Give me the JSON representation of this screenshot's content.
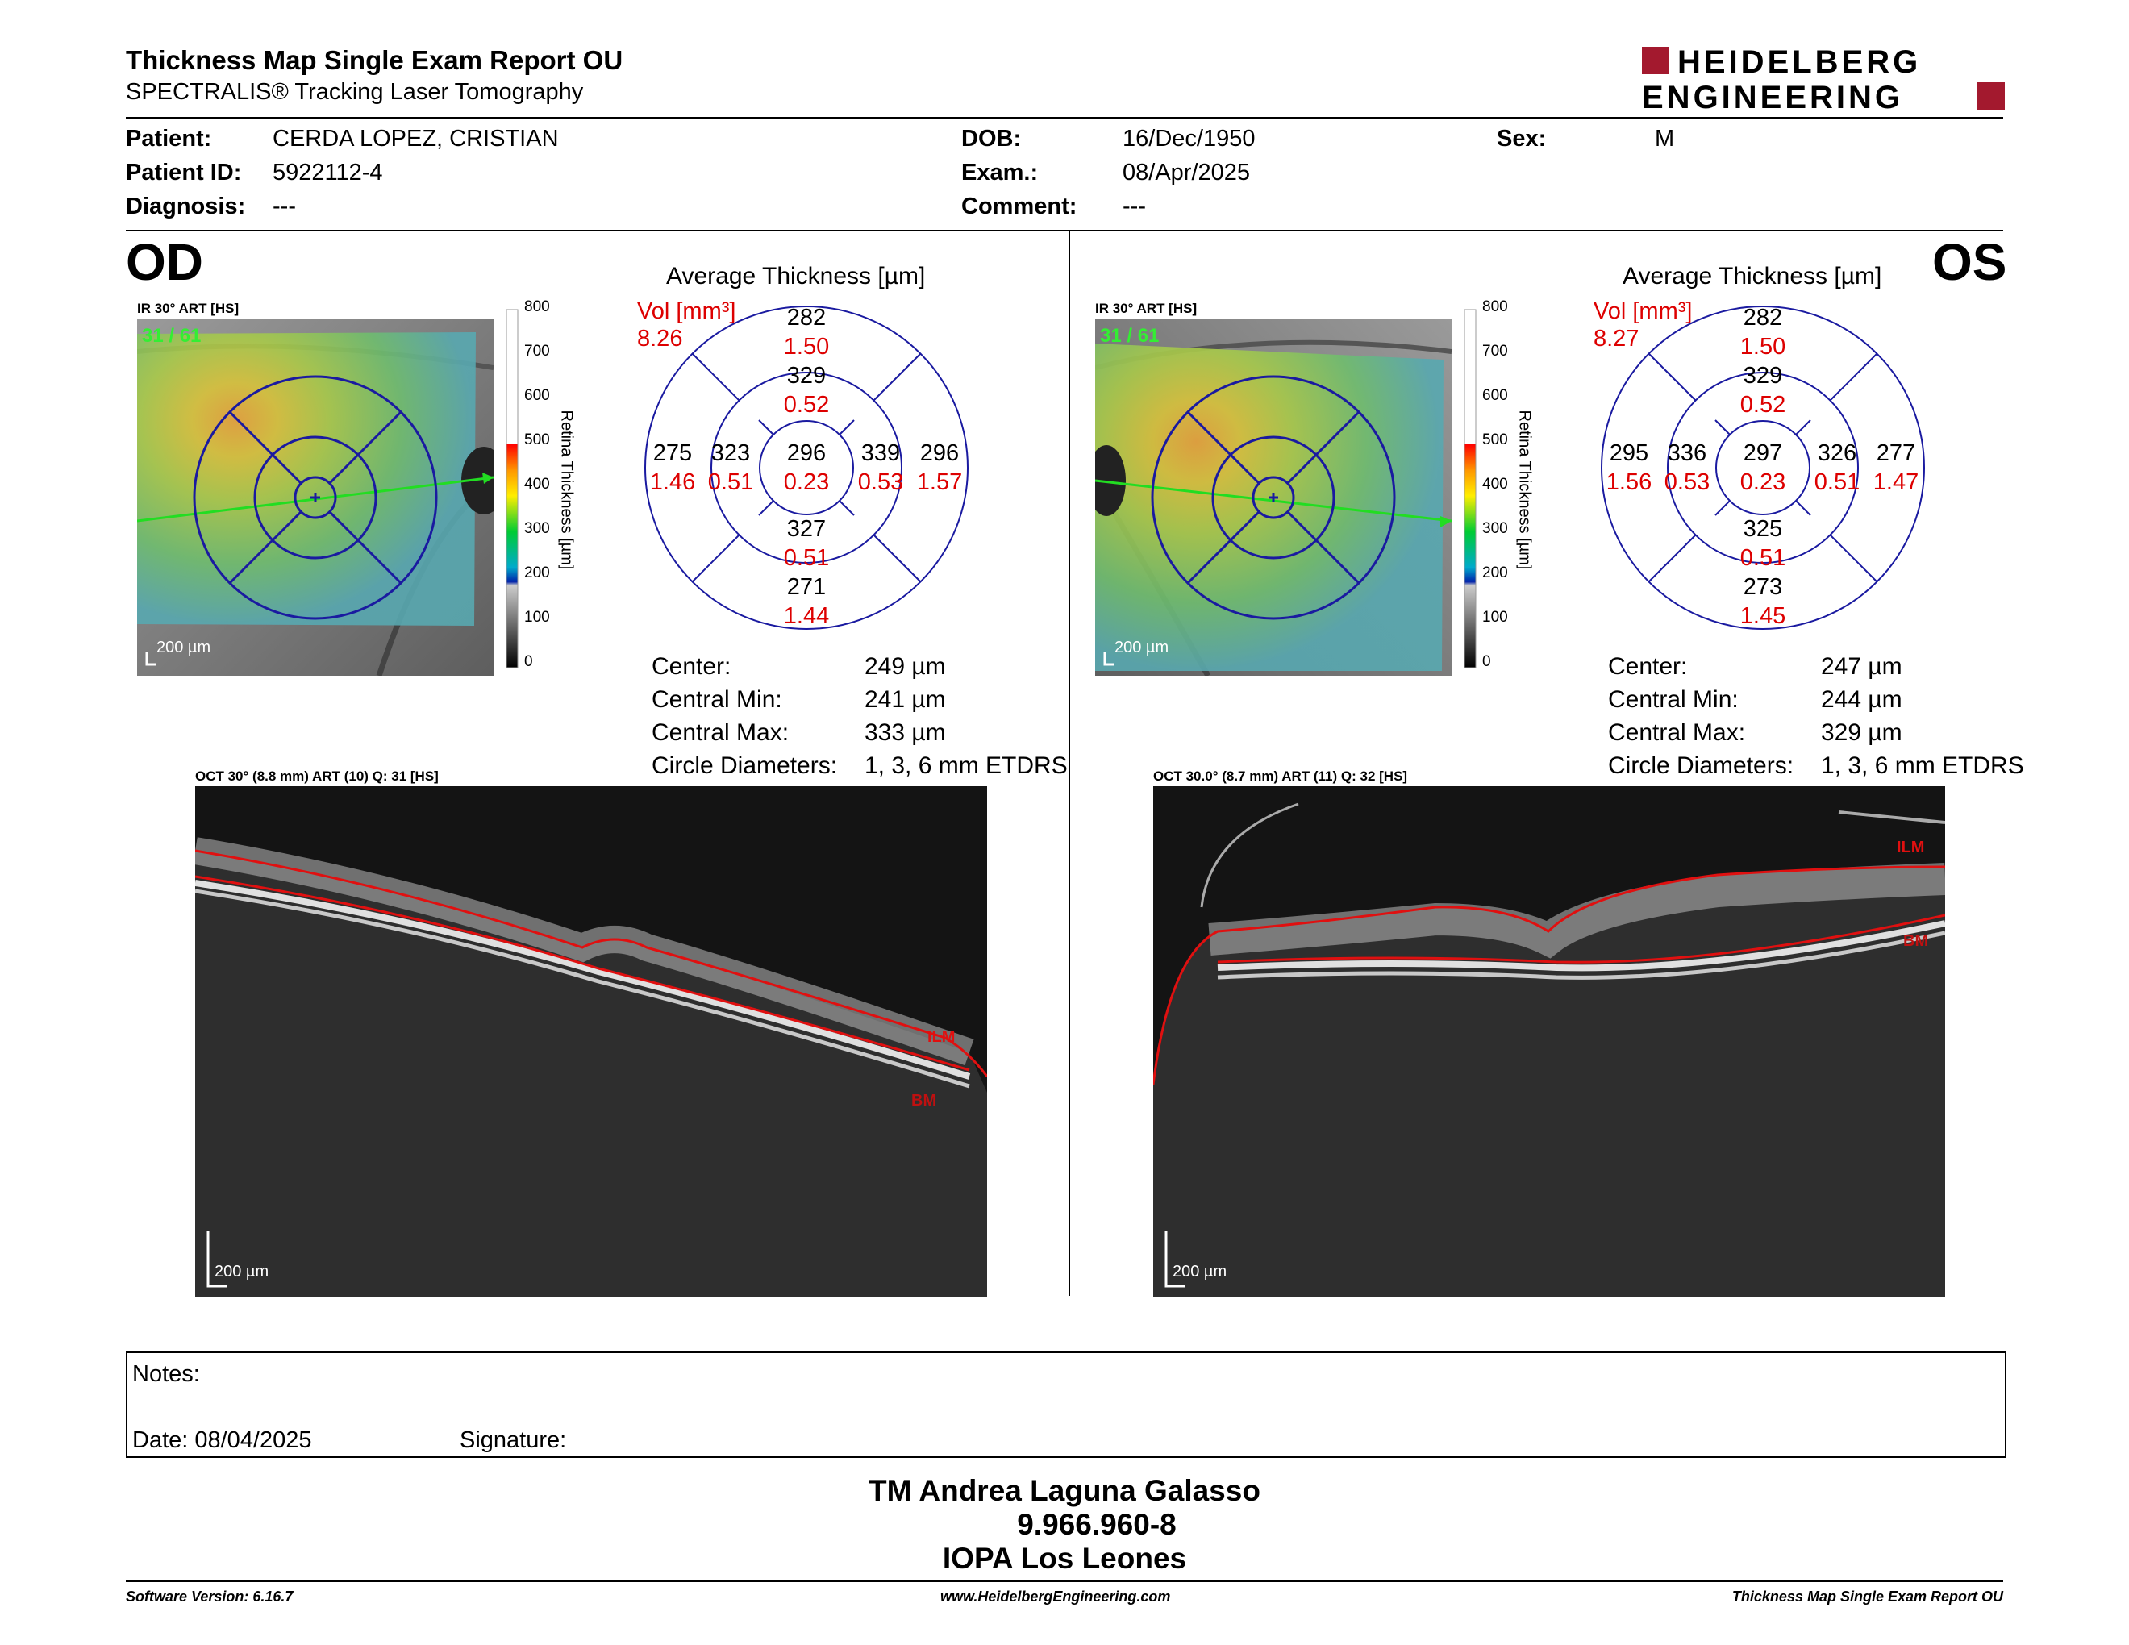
{
  "header": {
    "title": "Thickness Map Single Exam Report OU",
    "subtitle": "SPECTRALIS® Tracking Laser Tomography",
    "logo_line1": "HEIDELBERG",
    "logo_line2": "ENGINEERING"
  },
  "patient": {
    "name_label": "Patient:",
    "name": "CERDA LOPEZ, CRISTIAN",
    "id_label": "Patient ID:",
    "id": "5922112-4",
    "diag_label": "Diagnosis:",
    "diag": "---",
    "dob_label": "DOB:",
    "dob": "16/Dec/1950",
    "exam_label": "Exam.:",
    "exam": "08/Apr/2025",
    "comment_label": "Comment:",
    "comment": "---",
    "sex_label": "Sex:",
    "sex": "M"
  },
  "colorbar": {
    "ticks": [
      "800",
      "700",
      "600",
      "500",
      "400",
      "300",
      "200",
      "100",
      "0"
    ],
    "label": "Retina Thickness [µm]"
  },
  "od": {
    "eye": "OD",
    "ir_label": "IR 30° ART [HS]",
    "frame_count": "31 / 61",
    "scale": "200 µm",
    "avg_title": "Average Thickness [µm]",
    "vol_label": "Vol [mm³]",
    "vol_total": "8.26",
    "sectors": {
      "center": [
        "296",
        "0.23"
      ],
      "inner_top": [
        "329",
        "0.52"
      ],
      "inner_bottom": [
        "327",
        "0.51"
      ],
      "inner_left": [
        "323",
        "0.51"
      ],
      "inner_right": [
        "339",
        "0.53"
      ],
      "outer_top": [
        "282",
        "1.50"
      ],
      "outer_bottom": [
        "271",
        "1.44"
      ],
      "outer_left": [
        "275",
        "1.46"
      ],
      "outer_right": [
        "296",
        "1.57"
      ]
    },
    "stats": [
      {
        "label": "Center:",
        "value": "249 µm"
      },
      {
        "label": "Central Min:",
        "value": "241 µm"
      },
      {
        "label": "Central Max:",
        "value": "333 µm"
      },
      {
        "label": "Circle Diameters:",
        "value": "1, 3, 6 mm ETDRS"
      }
    ],
    "oct_label": "OCT 30° (8.8 mm) ART (10) Q: 31 [HS]",
    "oct_scale": "200 µm",
    "ilm": "ILM",
    "bm": "BM"
  },
  "os": {
    "eye": "OS",
    "ir_label": "IR 30° ART [HS]",
    "frame_count": "31 / 61",
    "scale": "200 µm",
    "avg_title": "Average Thickness [µm]",
    "vol_label": "Vol [mm³]",
    "vol_total": "8.27",
    "sectors": {
      "center": [
        "297",
        "0.23"
      ],
      "inner_top": [
        "329",
        "0.52"
      ],
      "inner_bottom": [
        "325",
        "0.51"
      ],
      "inner_left": [
        "336",
        "0.53"
      ],
      "inner_right": [
        "326",
        "0.51"
      ],
      "outer_top": [
        "282",
        "1.50"
      ],
      "outer_bottom": [
        "273",
        "1.45"
      ],
      "outer_left": [
        "295",
        "1.56"
      ],
      "outer_right": [
        "277",
        "1.47"
      ]
    },
    "stats": [
      {
        "label": "Center:",
        "value": "247 µm"
      },
      {
        "label": "Central Min:",
        "value": "244 µm"
      },
      {
        "label": "Central Max:",
        "value": "329 µm"
      },
      {
        "label": "Circle Diameters:",
        "value": "1, 3, 6 mm ETDRS"
      }
    ],
    "oct_label": "OCT 30.0° (8.7 mm) ART (11) Q: 32 [HS]",
    "oct_scale": "200 µm",
    "ilm": "ILM",
    "bm": "BM"
  },
  "notes": {
    "notes_label": "Notes:",
    "date_label": "Date: 08/04/2025",
    "signature_label": "Signature:"
  },
  "stamp": {
    "line1": "TM Andrea Laguna Galasso",
    "line2": "9.966.960-8",
    "line3": "IOPA Los Leones"
  },
  "footer": {
    "software": "Software Version: 6.16.7",
    "website": "www.HeidelbergEngineering.com",
    "report": "Thickness Map Single Exam Report OU"
  }
}
